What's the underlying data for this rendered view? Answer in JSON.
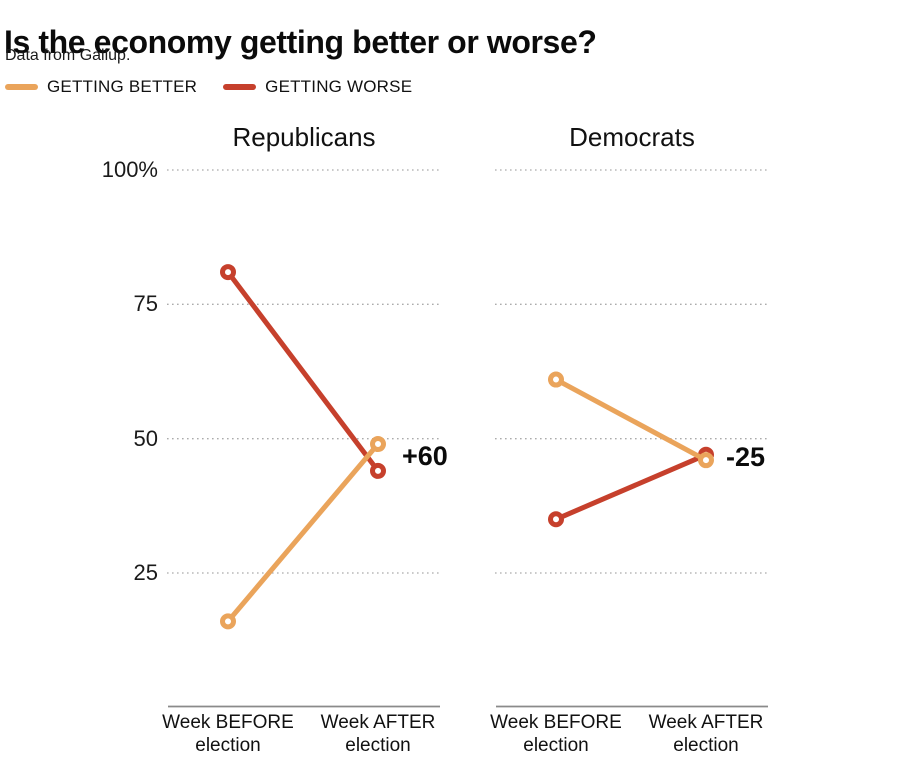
{
  "header": {
    "title": "Is the economy getting better or worse?",
    "subtitle": "Data from Gallup."
  },
  "legend": {
    "position": "top-left",
    "items": [
      {
        "label": "GETTING BETTER",
        "color": "#EAA45B",
        "swatch": "line-swatch"
      },
      {
        "label": "GETTING WORSE",
        "color": "#C6402C",
        "swatch": "line-swatch"
      }
    ]
  },
  "y_axis": {
    "ticks": [
      {
        "label": "100%",
        "value": 100
      },
      {
        "label": "75",
        "value": 75
      },
      {
        "label": "50",
        "value": 50
      },
      {
        "label": "25",
        "value": 25
      }
    ],
    "grid": "dotted-horizontal",
    "ylim": [
      0,
      100
    ]
  },
  "chart_data": [
    {
      "type": "line",
      "title": "Republicans",
      "categories": [
        "Week BEFORE election",
        "Week AFTER election"
      ],
      "series": [
        {
          "name": "GETTING BETTER",
          "color": "#EAA45B",
          "values": [
            16,
            49
          ]
        },
        {
          "name": "GETTING WORSE",
          "color": "#C6402C",
          "values": [
            81,
            44
          ]
        }
      ],
      "annotation": "+60",
      "ylim": [
        0,
        100
      ],
      "marker": "open-circle"
    },
    {
      "type": "line",
      "title": "Democrats",
      "categories": [
        "Week BEFORE election",
        "Week AFTER election"
      ],
      "series": [
        {
          "name": "GETTING BETTER",
          "color": "#EAA45B",
          "values": [
            61,
            46
          ]
        },
        {
          "name": "GETTING WORSE",
          "color": "#C6402C",
          "values": [
            35,
            47
          ]
        }
      ],
      "annotation": "-25",
      "ylim": [
        0,
        100
      ],
      "marker": "open-circle"
    }
  ]
}
